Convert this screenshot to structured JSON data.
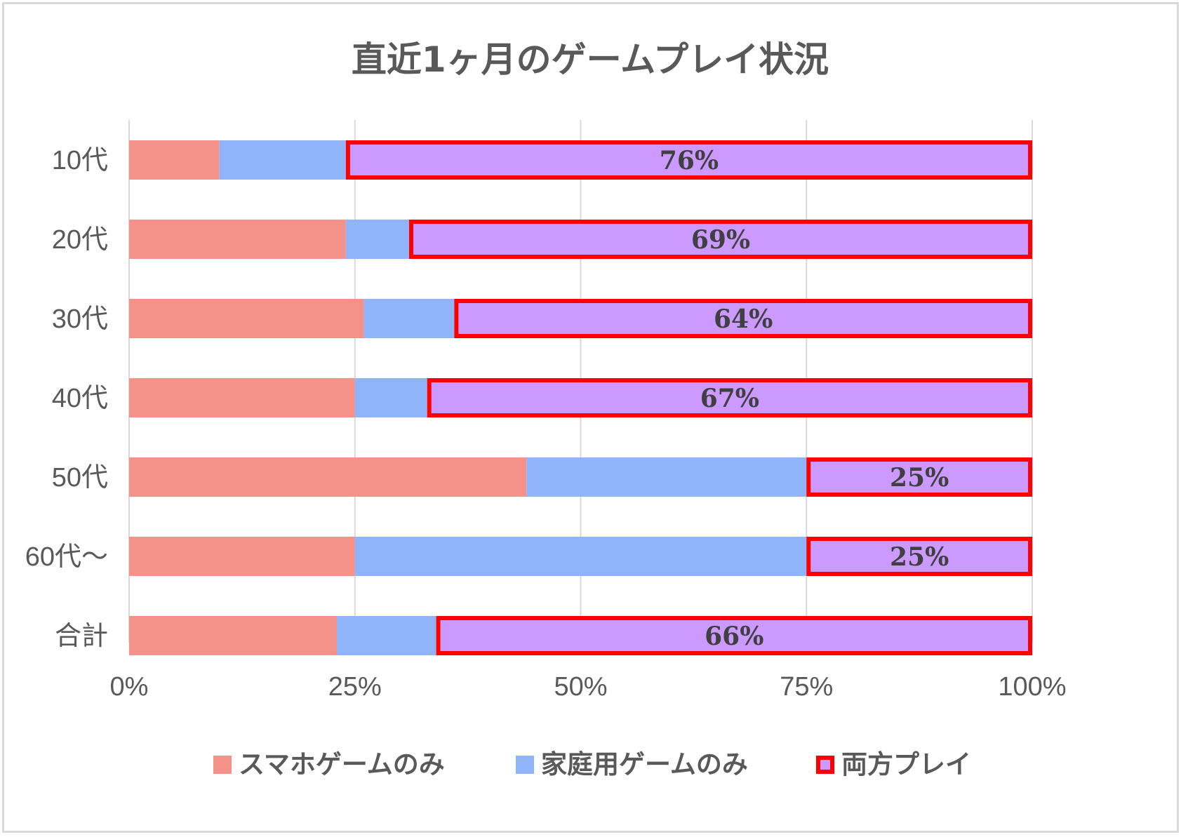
{
  "chart_data": {
    "type": "bar",
    "orientation": "horizontal",
    "stacked": "percent",
    "title": "直近1ヶ月のゲームプレイ状況",
    "categories": [
      "10代",
      "20代",
      "30代",
      "40代",
      "50代",
      "60代～",
      "合計"
    ],
    "series": [
      {
        "name": "スマホゲームのみ",
        "color": "#f4928a",
        "values": [
          10,
          24,
          26,
          25,
          44,
          25,
          23
        ],
        "show_labels": false
      },
      {
        "name": "家庭用ゲームのみ",
        "color": "#8fb4fa",
        "values": [
          14,
          7,
          10,
          8,
          31,
          50,
          11
        ],
        "show_labels": false
      },
      {
        "name": "両方プレイ",
        "color": "#cc99ff",
        "border_color": "#ff0000",
        "values": [
          76,
          69,
          64,
          67,
          25,
          25,
          66
        ],
        "show_labels": true,
        "label_suffix": "%"
      }
    ],
    "x_ticks": [
      "0%",
      "25%",
      "50%",
      "75%",
      "100%"
    ],
    "xlim": [
      0,
      100
    ],
    "grid": true,
    "legend": "bottom",
    "xlabel": "",
    "ylabel": ""
  },
  "colors": {
    "grid": "#d9d9d9",
    "text": "#595959",
    "data_label": "#404040"
  }
}
